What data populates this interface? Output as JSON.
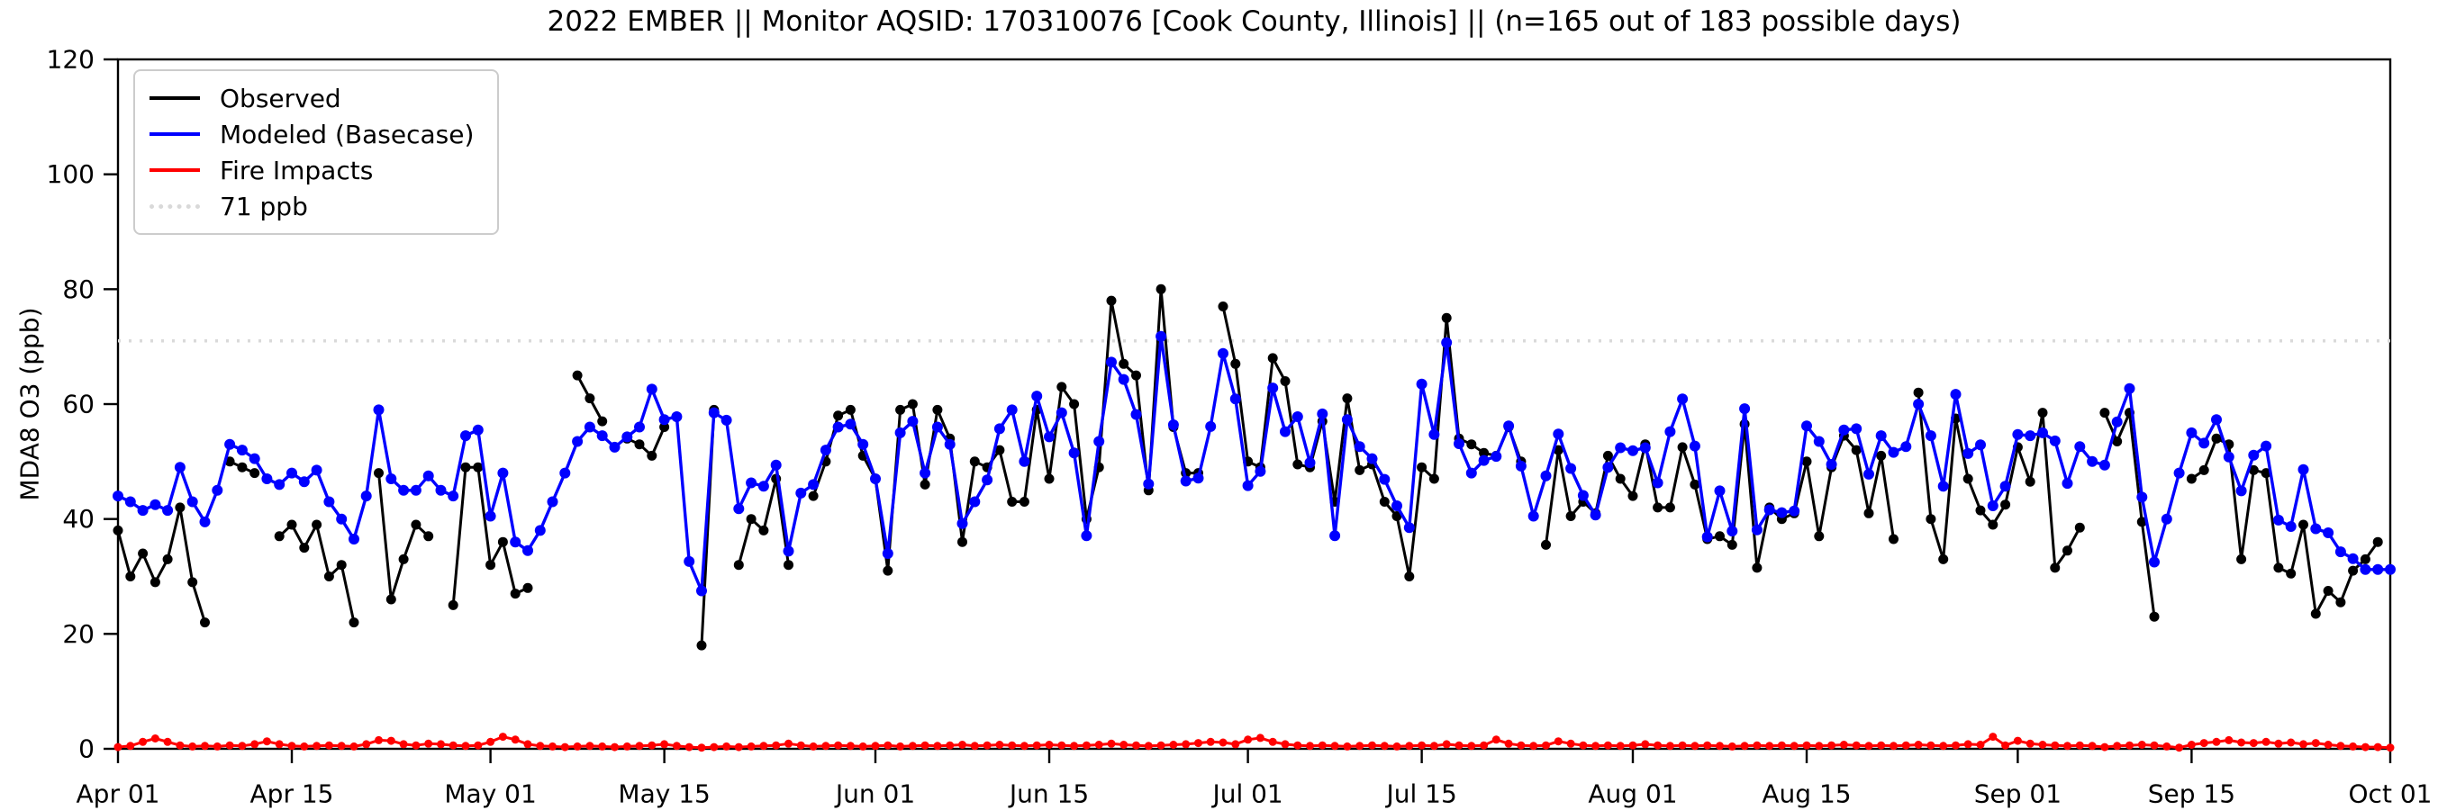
{
  "title": "2022 EMBER || Monitor AQSID: 170310076 [Cook County, Illinois] || (n=165 out of 183 possible days)",
  "chart_data": {
    "type": "line",
    "title": "2022 EMBER || Monitor AQSID: 170310076 [Cook County, Illinois] || (n=165 out of 183 possible days)",
    "xlabel": "",
    "ylabel": "MDA8 O3 (ppb)",
    "ylim": [
      0,
      120
    ],
    "yticks": [
      0,
      20,
      40,
      60,
      80,
      100,
      120
    ],
    "x_start": "Apr 01",
    "x_end": "Oct 01",
    "xtick_labels": [
      "Apr 01",
      "Apr 15",
      "May 01",
      "May 15",
      "Jun 01",
      "Jun 15",
      "Jul 01",
      "Jul 15",
      "Aug 01",
      "Aug 15",
      "Sep 01",
      "Sep 15",
      "Oct 01"
    ],
    "xtick_days": [
      0,
      14,
      30,
      44,
      61,
      75,
      91,
      105,
      122,
      136,
      153,
      167,
      183
    ],
    "grid": false,
    "legend_position": "upper left",
    "threshold": {
      "value": 71,
      "label": "71 ppb",
      "color": "#d9d9d9"
    },
    "legend": [
      {
        "label": "Observed",
        "color": "#000000"
      },
      {
        "label": "Modeled (Basecase)",
        "color": "#0000ff"
      },
      {
        "label": "Fire Impacts",
        "color": "#ff0000"
      },
      {
        "label": "71 ppb",
        "color": "#d9d9d9"
      }
    ],
    "n_observed": 165,
    "n_possible": 183,
    "series": [
      {
        "name": "Observed",
        "color": "#000000",
        "values": [
          38,
          30,
          34,
          29,
          33,
          42,
          29,
          22,
          null,
          50,
          49,
          48,
          null,
          37,
          39,
          35,
          39,
          30,
          32,
          22,
          null,
          48,
          26,
          33,
          39,
          37,
          null,
          25,
          49,
          49,
          32,
          36,
          27,
          28,
          null,
          null,
          null,
          65,
          61,
          57,
          null,
          54,
          53,
          51,
          56,
          null,
          null,
          18,
          59,
          null,
          32,
          40,
          38,
          47,
          32,
          null,
          44,
          50,
          58,
          59,
          51,
          47,
          31,
          59,
          60,
          46,
          59,
          54,
          36,
          50,
          49,
          52,
          43,
          43,
          59,
          47,
          63,
          60,
          40,
          49,
          78,
          67,
          65,
          45,
          80,
          56,
          48,
          48,
          null,
          77,
          67,
          50,
          49,
          68,
          64,
          49.5,
          49,
          57,
          43,
          61,
          48.5,
          49.5,
          43,
          40.5,
          30,
          49,
          47,
          75,
          54,
          53,
          51.5,
          51,
          56,
          50,
          null,
          35.5,
          52,
          40.5,
          43,
          41,
          51,
          47,
          44,
          53,
          42,
          42,
          52.5,
          46,
          36.5,
          37,
          35.5,
          56.5,
          31.5,
          42,
          40,
          41,
          50,
          37,
          49,
          54.5,
          52,
          41,
          51,
          36.5,
          null,
          62,
          40,
          33,
          57.5,
          47,
          41.5,
          39,
          42.5,
          52.5,
          46.5,
          58.5,
          31.5,
          34.5,
          38.5,
          null,
          58.5,
          53.5,
          58.5,
          39.5,
          23,
          null,
          null,
          47,
          48.5,
          54,
          53,
          33,
          48.5,
          48,
          31.5,
          30.5,
          39,
          23.5,
          27.5,
          25.5,
          31,
          33,
          36,
          null
        ]
      },
      {
        "name": "Modeled (Basecase)",
        "color": "#0000ff",
        "values": [
          44,
          43,
          41.5,
          42.5,
          41.5,
          49,
          43,
          39.5,
          45,
          53,
          52,
          50.5,
          47,
          46,
          48,
          46.5,
          48.5,
          43,
          40,
          36.5,
          44,
          59,
          47,
          45,
          45,
          47.5,
          45,
          44,
          54.5,
          55.5,
          40.5,
          48,
          36,
          34.5,
          38,
          43,
          48,
          53.5,
          56,
          54.5,
          52.5,
          54.3,
          56,
          62.6,
          57.3,
          57.8,
          32.6,
          27.5,
          58.5,
          57.2,
          41.8,
          46.3,
          45.7,
          49.4,
          34.4,
          44.5,
          46,
          52,
          56,
          56.5,
          53,
          47,
          34,
          55,
          57,
          48,
          56,
          53,
          39.2,
          43,
          46.8,
          55.7,
          59,
          50,
          61.4,
          54.3,
          58.5,
          51.5,
          37.1,
          53.5,
          67.3,
          64.3,
          58.2,
          46.1,
          71.8,
          56.4,
          46.6,
          47.1,
          56.1,
          68.8,
          60.9,
          45.8,
          48.3,
          62.8,
          55.2,
          57.8,
          49.8,
          58.3,
          37.1,
          57.3,
          52.6,
          50.5,
          46.9,
          42.3,
          38.5,
          63.5,
          54.7,
          70.7,
          53.1,
          48,
          50.2,
          50.9,
          56.2,
          49.2,
          40.5,
          47.5,
          54.8,
          48.8,
          44.1,
          40.7,
          49,
          52.4,
          51.9,
          52.4,
          46.3,
          55.2,
          60.9,
          52.7,
          36.9,
          44.9,
          37.9,
          59.2,
          38.1,
          41.6,
          41.1,
          41.4,
          56.2,
          53.5,
          49.5,
          55.5,
          55.7,
          47.8,
          54.5,
          51.6,
          52.6,
          60,
          54.5,
          45.7,
          61.7,
          51.4,
          52.9,
          42.3,
          45.7,
          54.7,
          54.5,
          55,
          53.6,
          46.2,
          52.6,
          50,
          49.4,
          56.9,
          62.7,
          43.8,
          32.5,
          40,
          48,
          55,
          53.2,
          57.3,
          50.8,
          44.9,
          51.1,
          52.7,
          39.8,
          38.7,
          48.6,
          38.3,
          37.6,
          34.3,
          33.1,
          31.2,
          31.2,
          31.2
        ]
      },
      {
        "name": "Fire Impacts",
        "color": "#ff0000",
        "values": [
          0.3,
          0.5,
          1.2,
          1.8,
          1.2,
          0.6,
          0.4,
          0.5,
          0.4,
          0.6,
          0.5,
          0.8,
          1.3,
          0.8,
          0.5,
          0.4,
          0.5,
          0.6,
          0.5,
          0.4,
          0.8,
          1.5,
          1.4,
          0.8,
          0.6,
          0.9,
          0.8,
          0.6,
          0.5,
          0.6,
          1.2,
          2.1,
          1.6,
          0.8,
          0.5,
          0.4,
          0.3,
          0.4,
          0.5,
          0.4,
          0.3,
          0.4,
          0.5,
          0.6,
          0.8,
          0.5,
          0.3,
          0.2,
          0.3,
          0.4,
          0.3,
          0.4,
          0.5,
          0.6,
          0.9,
          0.6,
          0.4,
          0.5,
          0.6,
          0.5,
          0.4,
          0.5,
          0.6,
          0.4,
          0.5,
          0.6,
          0.5,
          0.6,
          0.7,
          0.5,
          0.6,
          0.7,
          0.6,
          0.5,
          0.6,
          0.7,
          0.6,
          0.5,
          0.6,
          0.7,
          0.9,
          0.7,
          0.6,
          0.5,
          0.6,
          0.7,
          0.8,
          1.0,
          1.2,
          1.1,
          0.8,
          1.6,
          1.9,
          1.2,
          0.8,
          0.6,
          0.5,
          0.6,
          0.5,
          0.4,
          0.5,
          0.6,
          0.5,
          0.4,
          0.5,
          0.6,
          0.5,
          0.8,
          0.6,
          0.5,
          0.6,
          1.6,
          0.9,
          0.6,
          0.5,
          0.6,
          1.3,
          0.9,
          0.6,
          0.5,
          0.6,
          0.5,
          0.6,
          0.8,
          0.6,
          0.5,
          0.6,
          0.5,
          0.6,
          0.5,
          0.4,
          0.5,
          0.6,
          0.5,
          0.6,
          0.5,
          0.6,
          0.5,
          0.6,
          0.7,
          0.6,
          0.5,
          0.6,
          0.5,
          0.6,
          0.7,
          0.6,
          0.5,
          0.6,
          0.8,
          0.7,
          2.1,
          0.6,
          1.4,
          0.9,
          0.7,
          0.6,
          0.5,
          0.6,
          0.5,
          0.3,
          0.5,
          0.6,
          0.7,
          0.6,
          0.4,
          0.2,
          0.7,
          1.0,
          1.2,
          1.5,
          1.1,
          1.0,
          1.2,
          0.9,
          1.1,
          0.8,
          1.0,
          0.7,
          0.5,
          0.4,
          0.3,
          0.3,
          0.2
        ]
      }
    ]
  }
}
